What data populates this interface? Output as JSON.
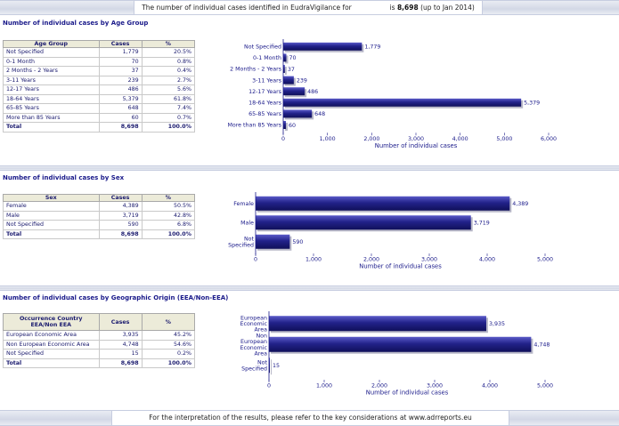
{
  "header": {
    "prefix": "The number of individual cases identified in EudraVigilance for",
    "middle": "is",
    "total": "8,698",
    "suffix": "(up to Jan 2014)"
  },
  "footer": {
    "text": "For the interpretation of the results, please refer to the key considerations at www.adrreports.eu"
  },
  "colors": {
    "bar": "#22228a",
    "bar_light": "#5a5ac8",
    "header_bg": "#ecebd9"
  },
  "sections": [
    {
      "title": "Number of individual cases by Age Group",
      "table": {
        "headers": [
          "Age Group",
          "Cases",
          "%"
        ],
        "rows": [
          [
            "Not Specified",
            "1,779",
            "20.5%"
          ],
          [
            "0-1 Month",
            "70",
            "0.8%"
          ],
          [
            "2 Months - 2 Years",
            "37",
            "0.4%"
          ],
          [
            "3-11 Years",
            "239",
            "2.7%"
          ],
          [
            "12-17 Years",
            "486",
            "5.6%"
          ],
          [
            "18-64 Years",
            "5,379",
            "61.8%"
          ],
          [
            "65-85 Years",
            "648",
            "7.4%"
          ],
          [
            "More than 85 Years",
            "60",
            "0.7%"
          ]
        ],
        "total": [
          "Total",
          "8,698",
          "100.0%"
        ]
      }
    },
    {
      "title": "Number of individual cases by Sex",
      "table": {
        "headers": [
          "Sex",
          "Cases",
          "%"
        ],
        "rows": [
          [
            "Female",
            "4,389",
            "50.5%"
          ],
          [
            "Male",
            "3,719",
            "42.8%"
          ],
          [
            "Not Specified",
            "590",
            "6.8%"
          ]
        ],
        "total": [
          "Total",
          "8,698",
          "100.0%"
        ]
      }
    },
    {
      "title": "Number of individual cases by Geographic Origin (EEA/Non-EEA)",
      "table": {
        "headers": [
          "Occurrence Country EEA/Non EEA",
          "Cases",
          "%"
        ],
        "rows": [
          [
            "European Economic Area",
            "3,935",
            "45.2%"
          ],
          [
            "Non European Economic Area",
            "4,748",
            "54.6%"
          ],
          [
            "Not Specified",
            "15",
            "0.2%"
          ]
        ],
        "total": [
          "Total",
          "8,698",
          "100.0%"
        ]
      }
    }
  ],
  "chart_data": [
    {
      "type": "bar",
      "orientation": "horizontal",
      "categories": [
        "Not Specified",
        "0-1 Month",
        "2 Months - 2 Years",
        "3-11 Years",
        "12-17 Years",
        "18-64 Years",
        "65-85 Years",
        "More than 85 Years"
      ],
      "values": [
        1779,
        70,
        37,
        239,
        486,
        5379,
        648,
        60
      ],
      "value_labels": [
        "1,779",
        "70",
        "37",
        "239",
        "486",
        "5,379",
        "648",
        "60"
      ],
      "xlabel": "Number of individual cases",
      "xlim": [
        0,
        6000
      ],
      "ticks": [
        0,
        1000,
        2000,
        3000,
        4000,
        5000,
        6000
      ],
      "tick_labels": [
        "0",
        "1,000",
        "2,000",
        "3,000",
        "4,000",
        "5,000",
        "6,000"
      ]
    },
    {
      "type": "bar",
      "orientation": "horizontal",
      "categories": [
        "Female",
        "Male",
        "Not Specified"
      ],
      "values": [
        4389,
        3719,
        590
      ],
      "value_labels": [
        "4,389",
        "3,719",
        "590"
      ],
      "xlabel": "Number of individual cases",
      "xlim": [
        0,
        5000
      ],
      "ticks": [
        0,
        1000,
        2000,
        3000,
        4000,
        5000
      ],
      "tick_labels": [
        "0",
        "1,000",
        "2,000",
        "3,000",
        "4,000",
        "5,000"
      ]
    },
    {
      "type": "bar",
      "orientation": "horizontal",
      "categories": [
        "European Economic Area",
        "Non European Economic Area",
        "Not Specified"
      ],
      "values": [
        3935,
        4748,
        15
      ],
      "value_labels": [
        "3,935",
        "4,748",
        "15"
      ],
      "xlabel": "Number of individual cases",
      "xlim": [
        0,
        5000
      ],
      "ticks": [
        0,
        1000,
        2000,
        3000,
        4000,
        5000
      ],
      "tick_labels": [
        "0",
        "1,000",
        "2,000",
        "3,000",
        "4,000",
        "5,000"
      ]
    }
  ]
}
